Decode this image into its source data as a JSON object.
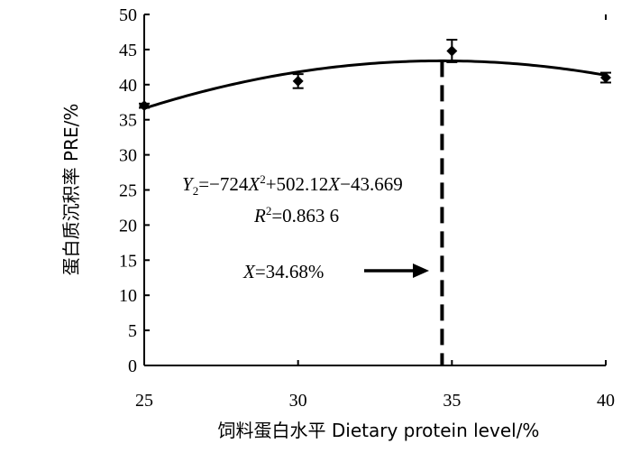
{
  "chart_data": {
    "type": "scatter",
    "xlabel": "饲料蛋白水平  Dietary protein level/%",
    "ylabel": "蛋白质沉积率  PRE/%",
    "xlim": [
      25,
      40
    ],
    "ylim": [
      0,
      50
    ],
    "x_ticks": [
      "25",
      "30",
      "35",
      "40"
    ],
    "y_ticks": [
      "0",
      "5",
      "10",
      "15",
      "20",
      "25",
      "30",
      "35",
      "40",
      "45",
      "50"
    ],
    "grid": false,
    "series": [
      {
        "points": [
          {
            "x": 25,
            "y": 37.0,
            "err": 0.3
          },
          {
            "x": 30,
            "y": 40.5,
            "err": 1.0
          },
          {
            "x": 35,
            "y": 44.8,
            "err": 1.6
          },
          {
            "x": 40,
            "y": 41.0,
            "err": 0.7
          }
        ]
      }
    ],
    "fit_curve": {
      "a": -724,
      "b": 502.12,
      "c": -43.669
    },
    "optimum_x": 34.68,
    "annotations": {
      "equation_label": "Y",
      "equation_subscript": "2",
      "equation_middle": "=−724",
      "equation_x": "X",
      "equation_sup": "2",
      "equation_rest": "+502.12",
      "equation_x2": "X",
      "equation_tail": "−43.669",
      "r2_label": "R",
      "r2_sup": "2",
      "r2_value": "=0.863 6",
      "optimum_label": "X",
      "optimum_value": "=34.68%"
    }
  }
}
